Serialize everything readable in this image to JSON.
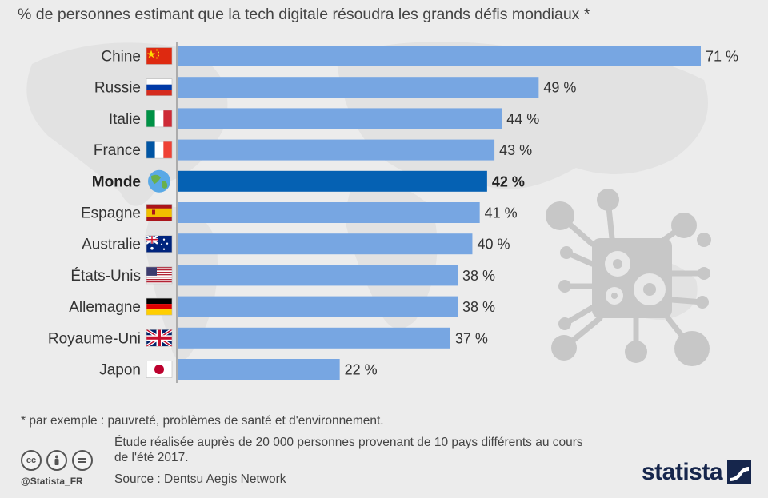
{
  "title": "% de personnes estimant que la tech digitale résoudra les grands défis mondiaux *",
  "chart_data": {
    "type": "bar",
    "orientation": "horizontal",
    "title": "% de personnes estimant que la tech digitale résoudra les grands défis mondiaux *",
    "categories": [
      "Chine",
      "Russie",
      "Italie",
      "France",
      "Monde",
      "Espagne",
      "Australie",
      "États-Unis",
      "Allemagne",
      "Royaume-Uni",
      "Japon"
    ],
    "values": [
      71,
      49,
      44,
      43,
      42,
      41,
      40,
      38,
      38,
      37,
      22
    ],
    "value_labels": [
      "71 %",
      "49 %",
      "44 %",
      "43 %",
      "42 %",
      "41 %",
      "40 %",
      "38 %",
      "38 %",
      "37 %",
      "22 %"
    ],
    "highlight": "Monde",
    "flags": [
      "china-flag",
      "russia-flag",
      "italy-flag",
      "france-flag",
      "globe-icon",
      "spain-flag",
      "australia-flag",
      "usa-flag",
      "germany-flag",
      "uk-flag",
      "japan-flag"
    ],
    "xlim": [
      0,
      71
    ],
    "colors": {
      "bar": "#77a6e2",
      "highlight": "#0561b3"
    }
  },
  "footer": {
    "footnote": "* par exemple : pauvreté, problèmes de santé et d'environnement.",
    "study": "Étude réalisée auprès de 20 000 personnes provenant de 10 pays différents au cours de l'été 2017.",
    "source": "Source : Dentsu Aegis Network",
    "handle": "@Statista_FR",
    "brand": "statista",
    "license_icons": [
      "cc-icon",
      "by-icon",
      "nd-icon"
    ]
  }
}
